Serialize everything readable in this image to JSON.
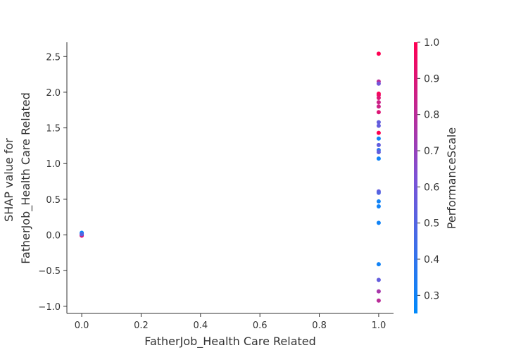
{
  "chart_data": {
    "type": "scatter",
    "title": "",
    "xlabel": "FatherJob_Health Care Related",
    "ylabel_lines": [
      "SHAP value for",
      "FatherJob_Health Care Related"
    ],
    "xlim": [
      -0.05,
      1.05
    ],
    "ylim": [
      -1.1,
      2.7
    ],
    "xticks": [
      0.0,
      0.2,
      0.4,
      0.6,
      0.8,
      1.0
    ],
    "xtick_labels": [
      "0.0",
      "0.2",
      "0.4",
      "0.6",
      "0.8",
      "1.0"
    ],
    "yticks": [
      -1.0,
      -0.5,
      0.0,
      0.5,
      1.0,
      1.5,
      2.0,
      2.5
    ],
    "ytick_labels": [
      "−1.0",
      "−0.5",
      "0.0",
      "0.5",
      "1.0",
      "1.5",
      "2.0",
      "2.5"
    ],
    "grid": false,
    "colorbar": {
      "label": "PerformanceScale",
      "range": [
        0.25,
        1.0
      ],
      "ticks": [
        0.3,
        0.4,
        0.5,
        0.6,
        0.7,
        0.8,
        0.9,
        1.0
      ],
      "tick_labels": [
        "0.3",
        "0.4",
        "0.5",
        "0.6",
        "0.7",
        "0.8",
        "0.9",
        "1.0"
      ],
      "color_low": "#008afb",
      "color_mid": "#7c52d6",
      "color_high": "#ff0052"
    },
    "points": [
      {
        "x": 0.0,
        "y": 0.03,
        "c": 0.25
      },
      {
        "x": 0.0,
        "y": 0.02,
        "c": 0.3
      },
      {
        "x": 0.0,
        "y": 0.0,
        "c": 1.0
      },
      {
        "x": 0.0,
        "y": -0.01,
        "c": 0.9
      },
      {
        "x": 0.0,
        "y": 0.01,
        "c": 0.5
      },
      {
        "x": 1.0,
        "y": 2.54,
        "c": 1.0
      },
      {
        "x": 1.0,
        "y": 2.15,
        "c": 0.8
      },
      {
        "x": 1.0,
        "y": 2.12,
        "c": 0.6
      },
      {
        "x": 1.0,
        "y": 1.98,
        "c": 1.0
      },
      {
        "x": 1.0,
        "y": 1.96,
        "c": 0.95
      },
      {
        "x": 1.0,
        "y": 1.92,
        "c": 0.9
      },
      {
        "x": 1.0,
        "y": 1.86,
        "c": 0.85
      },
      {
        "x": 1.0,
        "y": 1.8,
        "c": 0.85
      },
      {
        "x": 1.0,
        "y": 1.72,
        "c": 0.9
      },
      {
        "x": 1.0,
        "y": 1.58,
        "c": 0.55
      },
      {
        "x": 1.0,
        "y": 1.53,
        "c": 0.55
      },
      {
        "x": 1.0,
        "y": 1.43,
        "c": 1.0
      },
      {
        "x": 1.0,
        "y": 1.35,
        "c": 0.3
      },
      {
        "x": 1.0,
        "y": 1.26,
        "c": 0.55
      },
      {
        "x": 1.0,
        "y": 1.19,
        "c": 0.4
      },
      {
        "x": 1.0,
        "y": 1.16,
        "c": 0.55
      },
      {
        "x": 1.0,
        "y": 1.07,
        "c": 0.3
      },
      {
        "x": 1.0,
        "y": 0.61,
        "c": 0.55
      },
      {
        "x": 1.0,
        "y": 0.59,
        "c": 0.5
      },
      {
        "x": 1.0,
        "y": 0.47,
        "c": 0.3
      },
      {
        "x": 1.0,
        "y": 0.4,
        "c": 0.3
      },
      {
        "x": 1.0,
        "y": 0.17,
        "c": 0.3
      },
      {
        "x": 1.0,
        "y": -0.41,
        "c": 0.3
      },
      {
        "x": 1.0,
        "y": -0.63,
        "c": 0.55
      },
      {
        "x": 1.0,
        "y": -0.79,
        "c": 0.75
      },
      {
        "x": 1.0,
        "y": -0.92,
        "c": 0.8
      }
    ]
  }
}
